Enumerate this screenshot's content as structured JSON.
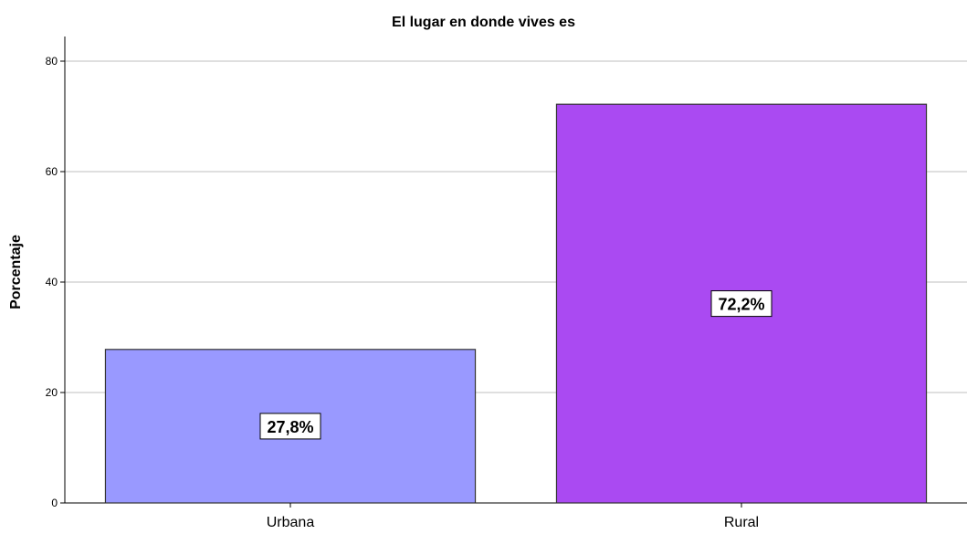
{
  "chart_data": {
    "type": "bar",
    "title": "El lugar en donde vives es",
    "xlabel": "",
    "ylabel": "Porcentaje",
    "categories": [
      "Urbana",
      "Rural"
    ],
    "values": [
      27.8,
      72.2
    ],
    "value_labels": [
      "27,8%",
      "72,2%"
    ],
    "bar_colors": [
      "#9999ff",
      "#aa4af2"
    ],
    "ylim": [
      0,
      80
    ],
    "yticks": [
      0,
      20,
      40,
      60,
      80
    ],
    "grid": true,
    "legend": "none"
  }
}
